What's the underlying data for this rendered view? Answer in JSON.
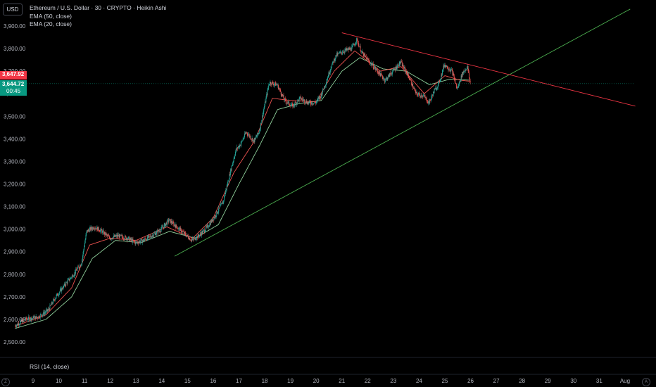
{
  "header": {
    "currency": "USD",
    "title": "Ethereum / U.S. Dollar · 30 · CRYPTO · Heikin Ashi",
    "indicator_1": "EMA (50, close)",
    "indicator_2": "EMA (20, close)"
  },
  "price_tags": {
    "red": "3,647.92",
    "green": "3,644.72",
    "countdown": "00:45"
  },
  "rsi_label": "RSI (14, close)",
  "corner_left": "Z",
  "corner_right": "A",
  "colors": {
    "up": "#26a69a",
    "down": "#ef5350",
    "ema20": "#ef5350",
    "ema50": "#8fcf9b",
    "trend_up": "#4caf50",
    "trend_down": "#f23645"
  },
  "chart_data": {
    "type": "candlestick",
    "ylim": [
      2450,
      3950
    ],
    "y_ticks": [
      "2,500.00",
      "2,600.00",
      "2,700.00",
      "2,800.00",
      "2,900.00",
      "3,000.00",
      "3,100.00",
      "3,200.00",
      "3,300.00",
      "3,400.00",
      "3,500.00",
      "3,600.00",
      "3,700.00",
      "3,800.00",
      "3,900.00"
    ],
    "x_ticks": [
      {
        "label": "9",
        "day": 9
      },
      {
        "label": "10",
        "day": 10
      },
      {
        "label": "11",
        "day": 11
      },
      {
        "label": "12",
        "day": 12
      },
      {
        "label": "13",
        "day": 13
      },
      {
        "label": "14",
        "day": 14
      },
      {
        "label": "15",
        "day": 15
      },
      {
        "label": "16",
        "day": 16
      },
      {
        "label": "17",
        "day": 17
      },
      {
        "label": "18",
        "day": 18
      },
      {
        "label": "19",
        "day": 19
      },
      {
        "label": "20",
        "day": 20
      },
      {
        "label": "21",
        "day": 21
      },
      {
        "label": "22",
        "day": 22
      },
      {
        "label": "23",
        "day": 23
      },
      {
        "label": "24",
        "day": 24
      },
      {
        "label": "25",
        "day": 25
      },
      {
        "label": "26",
        "day": 26
      },
      {
        "label": "27",
        "day": 27
      },
      {
        "label": "28",
        "day": 28
      },
      {
        "label": "29",
        "day": 29
      },
      {
        "label": "30",
        "day": 30
      },
      {
        "label": "31",
        "day": 31
      },
      {
        "label": "Aug",
        "day": 32
      }
    ],
    "price_path": [
      [
        8.3,
        2570
      ],
      [
        8.7,
        2600
      ],
      [
        9.2,
        2610
      ],
      [
        9.6,
        2640
      ],
      [
        9.9,
        2700
      ],
      [
        10.3,
        2760
      ],
      [
        10.6,
        2800
      ],
      [
        10.9,
        2850
      ],
      [
        11.1,
        2990
      ],
      [
        11.4,
        3010
      ],
      [
        11.7,
        2990
      ],
      [
        12.0,
        2960
      ],
      [
        12.3,
        2970
      ],
      [
        12.7,
        2960
      ],
      [
        13.0,
        2940
      ],
      [
        13.3,
        2950
      ],
      [
        13.7,
        2975
      ],
      [
        14.0,
        3000
      ],
      [
        14.3,
        3040
      ],
      [
        14.6,
        3010
      ],
      [
        14.9,
        2980
      ],
      [
        15.2,
        2950
      ],
      [
        15.5,
        2975
      ],
      [
        15.8,
        3010
      ],
      [
        16.1,
        3060
      ],
      [
        16.4,
        3120
      ],
      [
        16.7,
        3260
      ],
      [
        16.9,
        3350
      ],
      [
        17.1,
        3380
      ],
      [
        17.3,
        3430
      ],
      [
        17.6,
        3390
      ],
      [
        17.8,
        3430
      ],
      [
        18.0,
        3540
      ],
      [
        18.2,
        3650
      ],
      [
        18.5,
        3640
      ],
      [
        18.8,
        3570
      ],
      [
        19.1,
        3545
      ],
      [
        19.4,
        3580
      ],
      [
        19.7,
        3560
      ],
      [
        20.0,
        3560
      ],
      [
        20.2,
        3590
      ],
      [
        20.4,
        3650
      ],
      [
        20.6,
        3720
      ],
      [
        20.8,
        3770
      ],
      [
        21.1,
        3790
      ],
      [
        21.4,
        3800
      ],
      [
        21.6,
        3840
      ],
      [
        21.8,
        3780
      ],
      [
        22.1,
        3740
      ],
      [
        22.4,
        3700
      ],
      [
        22.7,
        3660
      ],
      [
        23.0,
        3700
      ],
      [
        23.3,
        3740
      ],
      [
        23.6,
        3680
      ],
      [
        23.9,
        3600
      ],
      [
        24.2,
        3590
      ],
      [
        24.4,
        3560
      ],
      [
        24.6,
        3610
      ],
      [
        24.8,
        3650
      ],
      [
        25.0,
        3730
      ],
      [
        25.3,
        3700
      ],
      [
        25.5,
        3620
      ],
      [
        25.7,
        3690
      ],
      [
        25.9,
        3720
      ],
      [
        26.0,
        3647
      ]
    ],
    "ema20": [
      [
        8.3,
        2570
      ],
      [
        9.5,
        2620
      ],
      [
        10.5,
        2740
      ],
      [
        11.2,
        2930
      ],
      [
        12.0,
        2960
      ],
      [
        13.0,
        2950
      ],
      [
        14.2,
        3010
      ],
      [
        15.2,
        2960
      ],
      [
        16.0,
        3050
      ],
      [
        16.8,
        3250
      ],
      [
        17.6,
        3390
      ],
      [
        18.3,
        3580
      ],
      [
        19.0,
        3570
      ],
      [
        20.0,
        3565
      ],
      [
        20.7,
        3700
      ],
      [
        21.5,
        3790
      ],
      [
        22.5,
        3700
      ],
      [
        23.3,
        3720
      ],
      [
        24.2,
        3600
      ],
      [
        25.0,
        3680
      ],
      [
        25.6,
        3660
      ],
      [
        26.0,
        3655
      ]
    ],
    "ema50": [
      [
        8.3,
        2560
      ],
      [
        9.5,
        2600
      ],
      [
        10.5,
        2700
      ],
      [
        11.3,
        2870
      ],
      [
        12.2,
        2950
      ],
      [
        13.2,
        2940
      ],
      [
        14.3,
        2990
      ],
      [
        15.3,
        2960
      ],
      [
        16.2,
        3020
      ],
      [
        17.0,
        3200
      ],
      [
        17.8,
        3370
      ],
      [
        18.5,
        3530
      ],
      [
        19.3,
        3555
      ],
      [
        20.2,
        3570
      ],
      [
        21.0,
        3700
      ],
      [
        21.7,
        3760
      ],
      [
        22.6,
        3710
      ],
      [
        23.5,
        3700
      ],
      [
        24.4,
        3640
      ],
      [
        25.2,
        3665
      ],
      [
        26.0,
        3660
      ]
    ],
    "trend_support": [
      [
        14.5,
        2880
      ],
      [
        32.2,
        3975
      ]
    ],
    "trend_resistance": [
      [
        21.0,
        3870
      ],
      [
        32.4,
        3545
      ]
    ],
    "last_price": 3644.72
  }
}
